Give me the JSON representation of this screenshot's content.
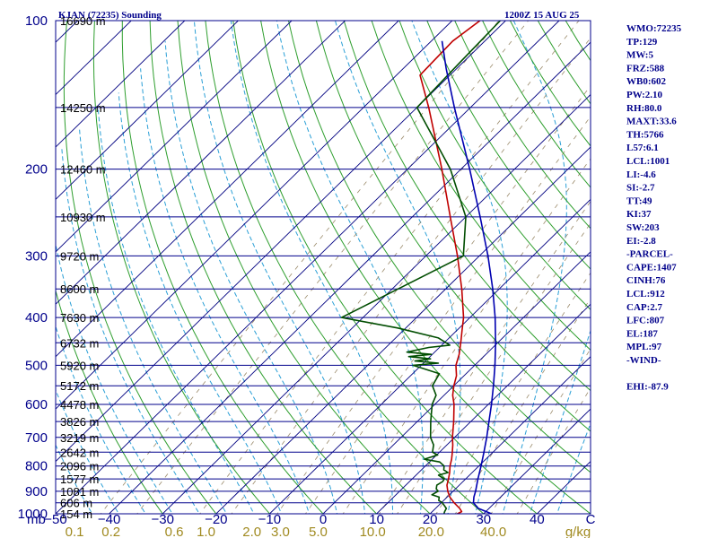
{
  "header": {
    "station_title": "KJAN (72235) Sounding",
    "time_label": "1200Z 15 AUG 25"
  },
  "colors": {
    "isobar": "#00008b",
    "isotherm": "#000080",
    "dry_adiabat": "#2e9e2e",
    "moist_adiabat": "#2a9fd6",
    "mixing_ratio": "#9a8a6a",
    "temperature": "#c00000",
    "dewpoint": "#004d00",
    "parcel": "#0000b0",
    "label_blue": "#00008b",
    "label_gold": "#a08a20"
  },
  "indices": [
    "WMO:72235",
    "TP:129",
    "MW:5",
    "FRZ:588",
    "WB0:602",
    "PW:2.10",
    "RH:80.0",
    "MAXT:33.6",
    "TH:5766",
    "L57:6.1",
    "LCL:1001",
    "LI:-4.6",
    "SI:-2.7",
    "TT:49",
    "KI:37",
    "SW:203",
    "EI:-2.8",
    "-PARCEL-",
    "CAPE:1407",
    "CINH:76",
    "LCL:912",
    "CAP:2.7",
    "LFC:807",
    "EL:187",
    "MPL:97",
    "-WIND-",
    "",
    "EHI:-87.9"
  ],
  "chart_data": {
    "type": "line",
    "skew_t": true,
    "y_scale": "log-pressure",
    "ylim_hpa": [
      1000,
      100
    ],
    "xlim_c": [
      -50,
      50
    ],
    "pressure_ticks": [
      "100",
      "200",
      "300",
      "400",
      "500",
      "600",
      "700",
      "800",
      "900",
      "1000"
    ],
    "pressure_unit": "mb",
    "temperature_ticks": [
      "−50",
      "−40",
      "−30",
      "−20",
      "−10",
      "0",
      "10",
      "20",
      "30",
      "40",
      "C"
    ],
    "mixing_ratio_ticks": [
      "0.1",
      "0.2",
      "0.6",
      "1.0",
      "2.0",
      "3.0",
      "5.0",
      "10.0",
      "20.0",
      "40.0",
      "g/kg"
    ],
    "heights": [
      {
        "p": 100,
        "label": "16690 m"
      },
      {
        "p": 150,
        "label": "14250 m"
      },
      {
        "p": 200,
        "label": "12460 m"
      },
      {
        "p": 250,
        "label": "10930 m"
      },
      {
        "p": 300,
        "label": "9720 m"
      },
      {
        "p": 350,
        "label": "8600 m"
      },
      {
        "p": 400,
        "label": "7630 m"
      },
      {
        "p": 450,
        "label": "6732 m"
      },
      {
        "p": 500,
        "label": "5920 m"
      },
      {
        "p": 550,
        "label": "5172 m"
      },
      {
        "p": 600,
        "label": "4478 m"
      },
      {
        "p": 650,
        "label": "3826 m"
      },
      {
        "p": 700,
        "label": "3219 m"
      },
      {
        "p": 750,
        "label": "2642 m"
      },
      {
        "p": 800,
        "label": "2096 m"
      },
      {
        "p": 850,
        "label": "1577 m"
      },
      {
        "p": 900,
        "label": "1081 m"
      },
      {
        "p": 950,
        "label": "606 m"
      },
      {
        "p": 1000,
        "label": "154 m"
      }
    ],
    "series": [
      {
        "key": "temperature",
        "points": [
          [
            1005,
            24.5
          ],
          [
            1000,
            25.1
          ],
          [
            990,
            25.5
          ],
          [
            975,
            24.5
          ],
          [
            950,
            22.4
          ],
          [
            925,
            20.5
          ],
          [
            900,
            19.0
          ],
          [
            875,
            17.7
          ],
          [
            850,
            16.8
          ],
          [
            825,
            15.8
          ],
          [
            800,
            14.6
          ],
          [
            775,
            13.6
          ],
          [
            750,
            12.4
          ],
          [
            725,
            11.1
          ],
          [
            700,
            9.6
          ],
          [
            650,
            6.8
          ],
          [
            600,
            3.6
          ],
          [
            575,
            1.6
          ],
          [
            550,
            0.0
          ],
          [
            525,
            -1.4
          ],
          [
            500,
            -3.5
          ],
          [
            475,
            -5.0
          ],
          [
            450,
            -6.9
          ],
          [
            425,
            -9.0
          ],
          [
            400,
            -11.2
          ],
          [
            350,
            -17.0
          ],
          [
            300,
            -24.1
          ],
          [
            250,
            -32.9
          ],
          [
            200,
            -43.6
          ],
          [
            150,
            -57.8
          ],
          [
            129,
            -65.6
          ],
          [
            110,
            -66.0
          ],
          [
            100,
            -64.8
          ]
        ]
      },
      {
        "key": "dewpoint",
        "points": [
          [
            1005,
            22.5
          ],
          [
            1000,
            22.6
          ],
          [
            990,
            22.3
          ],
          [
            975,
            22.0
          ],
          [
            950,
            20.2
          ],
          [
            940,
            19.1
          ],
          [
            925,
            18.5
          ],
          [
            915,
            16.7
          ],
          [
            900,
            17.2
          ],
          [
            890,
            16.4
          ],
          [
            875,
            15.8
          ],
          [
            860,
            16.2
          ],
          [
            850,
            16.0
          ],
          [
            835,
            14.2
          ],
          [
            825,
            15.5
          ],
          [
            815,
            14.2
          ],
          [
            800,
            13.5
          ],
          [
            785,
            11.9
          ],
          [
            775,
            8.5
          ],
          [
            760,
            10.2
          ],
          [
            750,
            8.7
          ],
          [
            725,
            7.5
          ],
          [
            700,
            5.5
          ],
          [
            650,
            2.5
          ],
          [
            600,
            -0.5
          ],
          [
            575,
            -1.5
          ],
          [
            550,
            -4.0
          ],
          [
            520,
            -5.0
          ],
          [
            500,
            -11.5
          ],
          [
            495,
            -7.2
          ],
          [
            490,
            -12.0
          ],
          [
            485,
            -9.5
          ],
          [
            480,
            -14.0
          ],
          [
            475,
            -10.2
          ],
          [
            470,
            -15.2
          ],
          [
            460,
            -12.0
          ],
          [
            455,
            -8.5
          ],
          [
            440,
            -12.0
          ],
          [
            420,
            -21.5
          ],
          [
            400,
            -34.0
          ],
          [
            300,
            -23.0
          ],
          [
            250,
            -30.0
          ],
          [
            200,
            -42.0
          ],
          [
            150,
            -60.0
          ],
          [
            125,
            -60.5
          ],
          [
            100,
            -61.0
          ]
        ]
      },
      {
        "key": "parcel",
        "points": [
          [
            1000,
            31.5
          ],
          [
            975,
            28.0
          ],
          [
            950,
            26.0
          ],
          [
            925,
            25.0
          ],
          [
            900,
            24.2
          ],
          [
            850,
            22.3
          ],
          [
            800,
            20.4
          ],
          [
            750,
            18.3
          ],
          [
            700,
            16.0
          ],
          [
            650,
            13.4
          ],
          [
            600,
            10.6
          ],
          [
            550,
            7.4
          ],
          [
            500,
            3.8
          ],
          [
            450,
            -0.4
          ],
          [
            400,
            -5.3
          ],
          [
            350,
            -11.2
          ],
          [
            300,
            -18.4
          ],
          [
            250,
            -27.3
          ],
          [
            200,
            -38.4
          ],
          [
            150,
            -53.0
          ],
          [
            125,
            -62.0
          ],
          [
            110,
            -68.0
          ]
        ]
      }
    ]
  }
}
